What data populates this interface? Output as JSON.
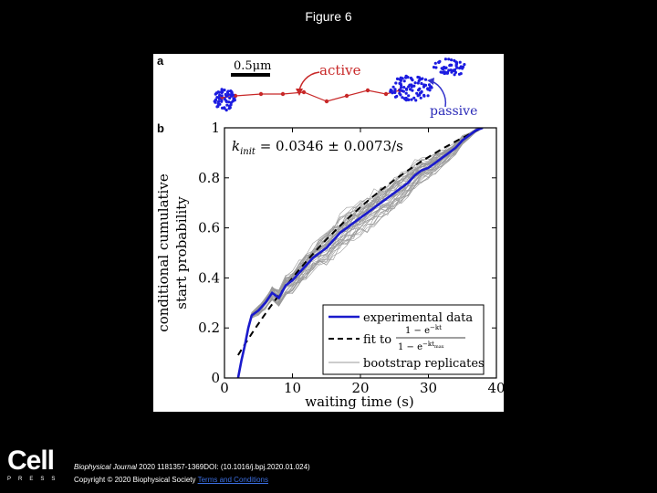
{
  "slide": {
    "title": "Figure 6"
  },
  "panel_a": {
    "label": "a",
    "scale_bar": "0.5μm",
    "active_label": "active",
    "passive_label": "passive",
    "colors": {
      "track": "#c82828",
      "cluster": "#1c1ce0",
      "arrow": "#c82828",
      "passive_arrow": "#3333cc"
    }
  },
  "chart_data": {
    "type": "line",
    "panel_label": "b",
    "annotation": "k_init = 0.0346 ± 0.0073/s",
    "annotation_lhs": "k",
    "annotation_sub": "init",
    "annotation_rhs": " = 0.0346 ± 0.0073/s",
    "xlabel": "waiting time (s)",
    "ylabel_line1": "conditional cumulative",
    "ylabel_line2": "start probability",
    "xlim": [
      0,
      40
    ],
    "ylim": [
      0,
      1
    ],
    "x_ticks": [
      0,
      10,
      20,
      30,
      40
    ],
    "x_tick_labels": [
      "0",
      "10",
      "20",
      "30",
      "40"
    ],
    "y_ticks": [
      0,
      0.2,
      0.4,
      0.6,
      0.8,
      1
    ],
    "y_tick_labels": [
      "0",
      "0.2",
      "0.4",
      "0.6",
      "0.8",
      "1"
    ],
    "legend": {
      "placement": "bottom-right",
      "experimental": "experimental data",
      "fit_prefix": "fit to",
      "fit_numerator": "1 − e",
      "fit_numerator_exp": "−kt",
      "fit_denominator": "1 − e",
      "fit_denominator_exp": "−kt",
      "fit_denominator_sub": "max",
      "bootstrap": "bootstrap replicates"
    },
    "series": [
      {
        "name": "experimental data",
        "color": "#1a1acc",
        "style": "solid",
        "x": [
          2,
          2.5,
          3,
          3.5,
          4,
          5,
          6,
          7,
          8,
          9,
          10,
          11,
          12,
          13,
          14,
          15,
          16,
          17,
          18,
          19,
          20,
          21,
          22,
          23,
          24,
          25,
          26,
          27,
          28,
          29,
          30,
          31,
          32,
          33,
          34,
          35,
          36,
          37,
          38
        ],
        "y": [
          0.0,
          0.07,
          0.13,
          0.2,
          0.25,
          0.27,
          0.3,
          0.34,
          0.32,
          0.37,
          0.39,
          0.42,
          0.45,
          0.48,
          0.5,
          0.52,
          0.55,
          0.58,
          0.6,
          0.62,
          0.64,
          0.66,
          0.68,
          0.7,
          0.72,
          0.74,
          0.76,
          0.78,
          0.81,
          0.83,
          0.84,
          0.86,
          0.88,
          0.9,
          0.92,
          0.95,
          0.97,
          0.99,
          1.0
        ]
      },
      {
        "name": "fit",
        "color": "#000000",
        "style": "dashed",
        "k": 0.0346,
        "t_max": 38,
        "x_start": 2
      }
    ],
    "bootstrap_color": "#9a9a9a",
    "bootstrap_count": 40
  },
  "footer": {
    "logo_main": "Cell",
    "logo_sub": "PRESS",
    "journal": "Biophysical Journal",
    "citation": " 2020 1181357-1369DOI: (10.1016/j.bpj.2020.01.024)",
    "copyright": "Copyright © 2020 Biophysical Society",
    "terms_link": "Terms and Conditions"
  }
}
